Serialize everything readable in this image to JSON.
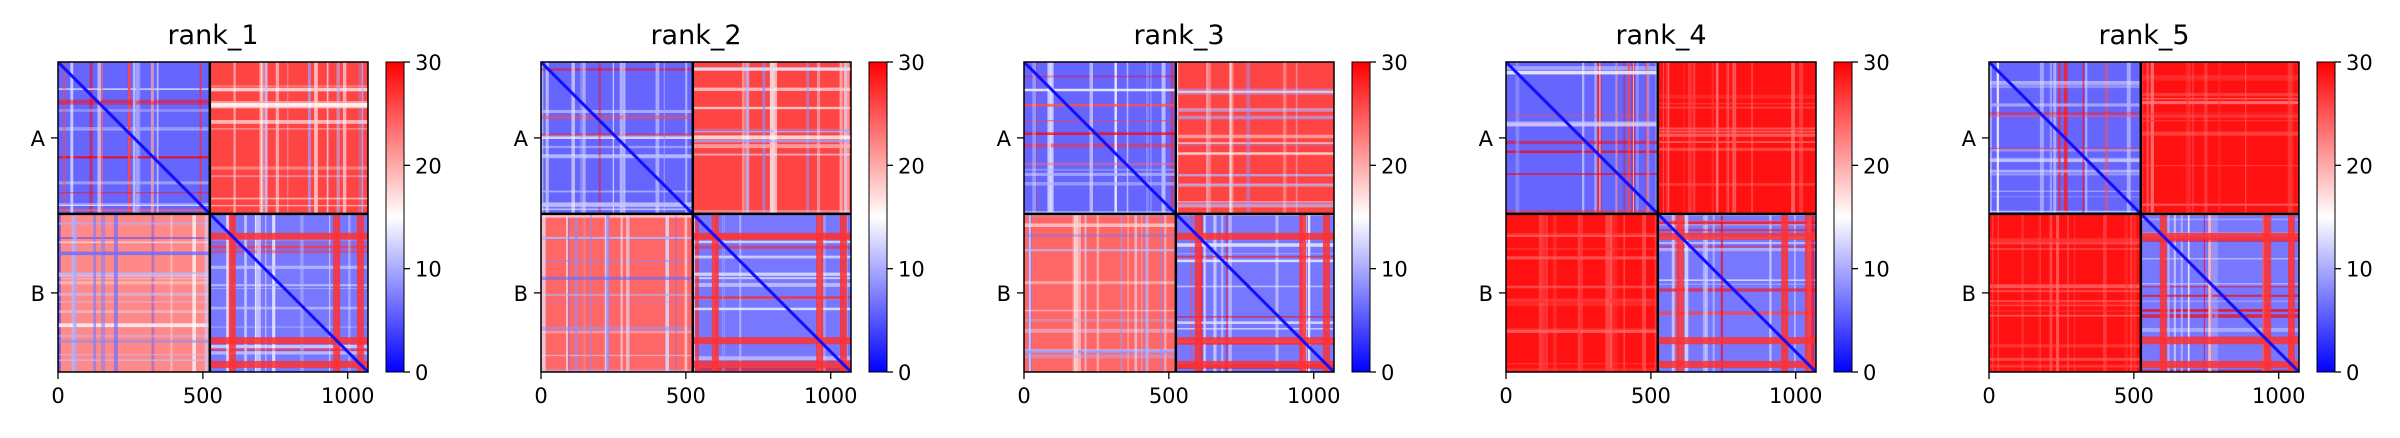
{
  "chart_data": [
    {
      "type": "heatmap",
      "title": "rank_1",
      "xticks": [
        0,
        500,
        1000
      ],
      "yticklabels": [
        "A",
        "B"
      ],
      "xlim": [
        0,
        1070
      ],
      "chain_break": 524,
      "colorbar": {
        "ticks": [
          0,
          10,
          20,
          30
        ],
        "range": [
          0,
          30
        ],
        "colors": [
          "#0000ff",
          "#ffffff",
          "#ff0000"
        ]
      },
      "blocks": [
        [
          6,
          26
        ],
        [
          22,
          7
        ]
      ]
    },
    {
      "type": "heatmap",
      "title": "rank_2",
      "xticks": [
        0,
        500,
        1000
      ],
      "yticklabels": [
        "A",
        "B"
      ],
      "xlim": [
        0,
        1070
      ],
      "chain_break": 524,
      "colorbar": {
        "ticks": [
          0,
          10,
          20,
          30
        ],
        "range": [
          0,
          30
        ],
        "colors": [
          "#0000ff",
          "#ffffff",
          "#ff0000"
        ]
      },
      "blocks": [
        [
          6,
          26
        ],
        [
          24,
          7
        ]
      ]
    },
    {
      "type": "heatmap",
      "title": "rank_3",
      "xticks": [
        0,
        500,
        1000
      ],
      "yticklabels": [
        "A",
        "B"
      ],
      "xlim": [
        0,
        1070
      ],
      "chain_break": 524,
      "colorbar": {
        "ticks": [
          0,
          10,
          20,
          30
        ],
        "range": [
          0,
          30
        ],
        "colors": [
          "#0000ff",
          "#ffffff",
          "#ff0000"
        ]
      },
      "blocks": [
        [
          6,
          26
        ],
        [
          24,
          7
        ]
      ]
    },
    {
      "type": "heatmap",
      "title": "rank_4",
      "xticks": [
        0,
        500,
        1000
      ],
      "yticklabels": [
        "A",
        "B"
      ],
      "xlim": [
        0,
        1070
      ],
      "chain_break": 524,
      "colorbar": {
        "ticks": [
          0,
          10,
          20,
          30
        ],
        "range": [
          0,
          30
        ],
        "colors": [
          "#0000ff",
          "#ffffff",
          "#ff0000"
        ]
      },
      "blocks": [
        [
          6,
          29
        ],
        [
          29,
          7
        ]
      ]
    },
    {
      "type": "heatmap",
      "title": "rank_5",
      "xticks": [
        0,
        500,
        1000
      ],
      "yticklabels": [
        "A",
        "B"
      ],
      "xlim": [
        0,
        1070
      ],
      "chain_break": 524,
      "colorbar": {
        "ticks": [
          0,
          10,
          20,
          30
        ],
        "range": [
          0,
          30
        ],
        "colors": [
          "#0000ff",
          "#ffffff",
          "#ff0000"
        ]
      },
      "blocks": [
        [
          6,
          29
        ],
        [
          29,
          7
        ]
      ]
    }
  ]
}
